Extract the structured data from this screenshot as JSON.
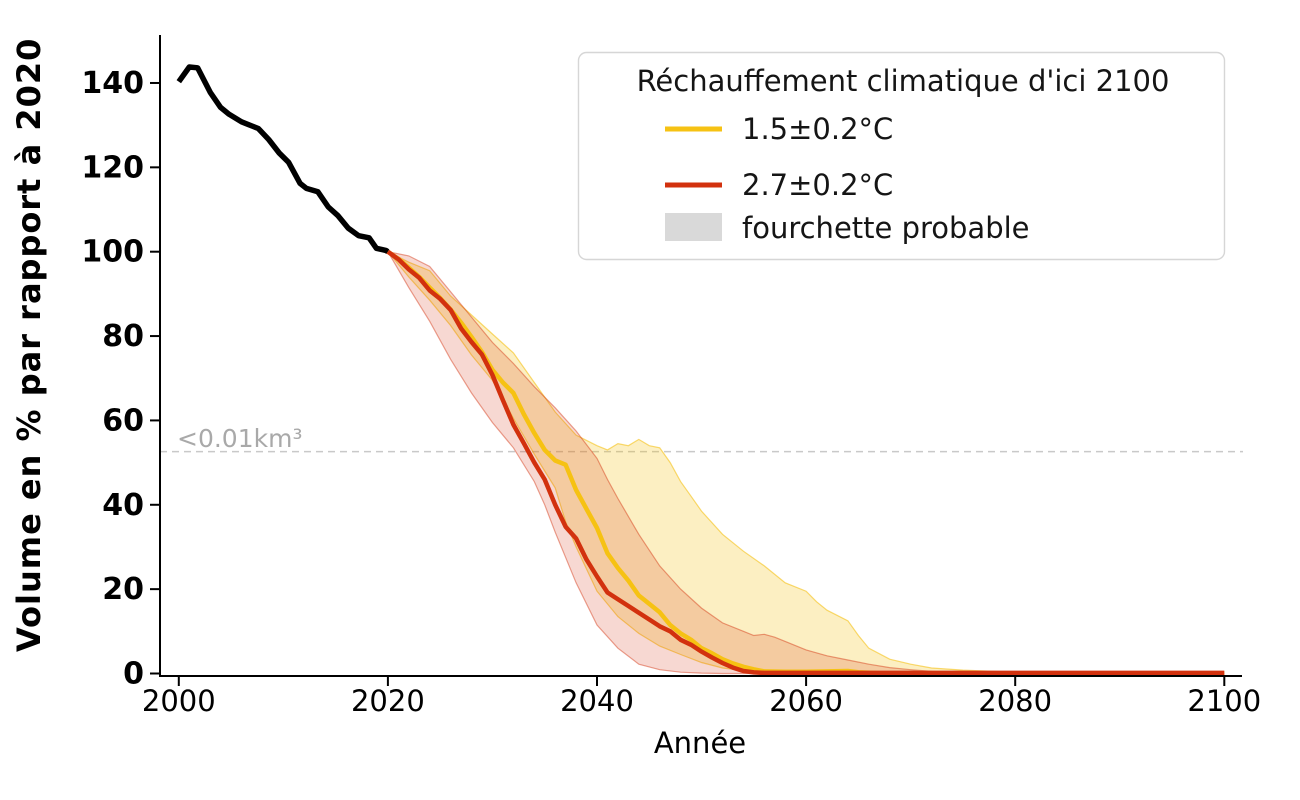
{
  "page": {
    "background": "#ffffff"
  },
  "chart_data": {
    "type": "line",
    "title": "",
    "xlabel": "Année",
    "ylabel": "Volume en % par rapport à 2020",
    "xlim": [
      1998.2,
      2101.5
    ],
    "ylim": [
      -0.6,
      151.4
    ],
    "grid": false,
    "x_ticks": [
      2000,
      2020,
      2040,
      2060,
      2080,
      2100
    ],
    "y_ticks": [
      0,
      20,
      40,
      60,
      80,
      100,
      120,
      140
    ],
    "threshold": {
      "value": 52.6,
      "label": "<0.01km³",
      "line_color": "#c9c9c9",
      "label_color": "#a9a9a9"
    },
    "legend": {
      "title": "Réchauffement climatique d'ici 2100",
      "position": "upper right",
      "entries": [
        {
          "label": "1.5±0.2°C",
          "type": "line",
          "color": "#F6C213"
        },
        {
          "label": "2.7±0.2°C",
          "type": "line",
          "color": "#D2310E"
        },
        {
          "label": "fourchette probable",
          "type": "patch",
          "color": "#d9d9d9"
        }
      ]
    },
    "series": [
      {
        "name": "historique",
        "color": "#000000",
        "width": 5.5,
        "points": [
          [
            2000,
            140.3
          ],
          [
            2001,
            143.8
          ],
          [
            2001.8,
            143.6
          ],
          [
            2003,
            137.8
          ],
          [
            2004,
            134.2
          ],
          [
            2004.8,
            132.6
          ],
          [
            2006,
            130.8
          ],
          [
            2007,
            129.8
          ],
          [
            2007.6,
            129.2
          ],
          [
            2008.6,
            126.6
          ],
          [
            2009.6,
            123.4
          ],
          [
            2010.5,
            121.2
          ],
          [
            2011.6,
            116.2
          ],
          [
            2012.2,
            115.0
          ],
          [
            2013.3,
            114.2
          ],
          [
            2014.3,
            110.6
          ],
          [
            2015.2,
            108.6
          ],
          [
            2016.2,
            105.6
          ],
          [
            2017.2,
            103.8
          ],
          [
            2018.2,
            103.3
          ],
          [
            2018.9,
            100.8
          ],
          [
            2019.8,
            100.3
          ],
          [
            2020,
            100
          ]
        ]
      },
      {
        "name": "1.5±0.2°C",
        "color": "#F6C213",
        "width": 4.5,
        "points": [
          [
            2020,
            100
          ],
          [
            2021,
            98.3
          ],
          [
            2022,
            96.2
          ],
          [
            2023,
            94.0
          ],
          [
            2024,
            91.5
          ],
          [
            2025,
            89.0
          ],
          [
            2026,
            86.3
          ],
          [
            2027,
            83.2
          ],
          [
            2028,
            79.8
          ],
          [
            2029,
            76.2
          ],
          [
            2030,
            72.0
          ],
          [
            2031,
            69.0
          ],
          [
            2032,
            66.5
          ],
          [
            2033,
            61.5
          ],
          [
            2034,
            57.0
          ],
          [
            2035,
            53.0
          ],
          [
            2036,
            50.5
          ],
          [
            2037,
            49.5
          ],
          [
            2038,
            43.5
          ],
          [
            2039,
            39.0
          ],
          [
            2040,
            34.5
          ],
          [
            2041,
            28.5
          ],
          [
            2042,
            25.0
          ],
          [
            2043,
            22.0
          ],
          [
            2044,
            18.5
          ],
          [
            2045,
            16.5
          ],
          [
            2046,
            14.5
          ],
          [
            2047,
            11.5
          ],
          [
            2048,
            9.5
          ],
          [
            2049,
            8.0
          ],
          [
            2050,
            6.0
          ],
          [
            2051,
            4.8
          ],
          [
            2052,
            3.4
          ],
          [
            2053,
            2.4
          ],
          [
            2054,
            1.6
          ],
          [
            2055,
            1.0
          ],
          [
            2056,
            0.5
          ],
          [
            2058,
            0.4
          ],
          [
            2060,
            0.4
          ],
          [
            2062,
            0.5
          ],
          [
            2064,
            0.6
          ],
          [
            2065,
            0.3
          ],
          [
            2067,
            0.1
          ],
          [
            2070,
            0
          ],
          [
            2100,
            0
          ]
        ],
        "band_fill": "rgba(244,187,0,0.24)",
        "band_edge": "rgba(244,187,0,0.55)",
        "band_upper": [
          [
            2020,
            100
          ],
          [
            2022,
            97.5
          ],
          [
            2024,
            95.5
          ],
          [
            2026,
            89.5
          ],
          [
            2028,
            85.0
          ],
          [
            2030,
            80.5
          ],
          [
            2032,
            76.0
          ],
          [
            2034,
            69.0
          ],
          [
            2036,
            62.0
          ],
          [
            2038,
            56.5
          ],
          [
            2040,
            54.0
          ],
          [
            2041,
            53.0
          ],
          [
            2042,
            54.5
          ],
          [
            2043,
            54.0
          ],
          [
            2044,
            55.5
          ],
          [
            2045,
            54.0
          ],
          [
            2046,
            53.5
          ],
          [
            2047,
            50.0
          ],
          [
            2048,
            45.5
          ],
          [
            2049,
            42.0
          ],
          [
            2050,
            38.5
          ],
          [
            2052,
            33.0
          ],
          [
            2054,
            29.0
          ],
          [
            2056,
            25.5
          ],
          [
            2058,
            21.5
          ],
          [
            2060,
            19.5
          ],
          [
            2061,
            17.0
          ],
          [
            2062,
            15.0
          ],
          [
            2064,
            12.5
          ],
          [
            2065,
            9.0
          ],
          [
            2066,
            6.0
          ],
          [
            2068,
            3.4
          ],
          [
            2070,
            2.2
          ],
          [
            2072,
            1.3
          ],
          [
            2075,
            0.8
          ],
          [
            2078,
            0.5
          ],
          [
            2080,
            0.3
          ],
          [
            2083,
            0.1
          ],
          [
            2086,
            0
          ],
          [
            2100,
            0
          ]
        ],
        "band_lower": [
          [
            2020,
            100
          ],
          [
            2022,
            94.0
          ],
          [
            2024,
            88.5
          ],
          [
            2026,
            82.5
          ],
          [
            2028,
            75.5
          ],
          [
            2030,
            69.5
          ],
          [
            2032,
            60.5
          ],
          [
            2034,
            52.0
          ],
          [
            2035,
            48.0
          ],
          [
            2036,
            44.0
          ],
          [
            2037,
            36.0
          ],
          [
            2038,
            30.0
          ],
          [
            2040,
            19.5
          ],
          [
            2042,
            13.5
          ],
          [
            2044,
            9.5
          ],
          [
            2046,
            6.5
          ],
          [
            2048,
            4.5
          ],
          [
            2050,
            2.6
          ],
          [
            2052,
            1.3
          ],
          [
            2054,
            0.7
          ],
          [
            2056,
            0.3
          ],
          [
            2058,
            0.1
          ],
          [
            2060,
            0
          ],
          [
            2100,
            0
          ]
        ]
      },
      {
        "name": "2.7±0.2°C",
        "color": "#D2310E",
        "width": 4.5,
        "points": [
          [
            2020,
            100
          ],
          [
            2021,
            98.2
          ],
          [
            2022,
            95.8
          ],
          [
            2023,
            93.8
          ],
          [
            2024,
            90.8
          ],
          [
            2025,
            88.8
          ],
          [
            2026,
            86.2
          ],
          [
            2027,
            81.8
          ],
          [
            2028,
            78.6
          ],
          [
            2029,
            75.6
          ],
          [
            2030,
            70.8
          ],
          [
            2031,
            64.8
          ],
          [
            2032,
            59.0
          ],
          [
            2033,
            54.6
          ],
          [
            2034,
            50.0
          ],
          [
            2035,
            46.0
          ],
          [
            2036,
            40.0
          ],
          [
            2037,
            34.8
          ],
          [
            2038,
            32.0
          ],
          [
            2039,
            27.0
          ],
          [
            2040,
            23.0
          ],
          [
            2041,
            19.2
          ],
          [
            2042,
            17.6
          ],
          [
            2043,
            16.0
          ],
          [
            2044,
            14.4
          ],
          [
            2045,
            12.8
          ],
          [
            2046,
            11.2
          ],
          [
            2047,
            10.0
          ],
          [
            2048,
            8.0
          ],
          [
            2049,
            6.8
          ],
          [
            2050,
            5.2
          ],
          [
            2051,
            3.8
          ],
          [
            2052,
            2.5
          ],
          [
            2053,
            1.4
          ],
          [
            2054,
            0.6
          ],
          [
            2055,
            0.25
          ],
          [
            2056,
            0.15
          ],
          [
            2060,
            0.15
          ],
          [
            2100,
            0.15
          ]
        ],
        "band_fill": "rgba(210,49,14,0.19)",
        "band_edge": "rgba(210,49,14,0.45)",
        "band_upper": [
          [
            2020,
            100
          ],
          [
            2022,
            99.0
          ],
          [
            2024,
            96.5
          ],
          [
            2026,
            90.5
          ],
          [
            2028,
            84.5
          ],
          [
            2030,
            78.5
          ],
          [
            2032,
            73.5
          ],
          [
            2034,
            68.0
          ],
          [
            2036,
            63.0
          ],
          [
            2038,
            57.5
          ],
          [
            2040,
            51.0
          ],
          [
            2041,
            46.0
          ],
          [
            2042,
            41.5
          ],
          [
            2044,
            33.0
          ],
          [
            2046,
            25.5
          ],
          [
            2048,
            20.0
          ],
          [
            2050,
            15.5
          ],
          [
            2052,
            12.0
          ],
          [
            2054,
            10.0
          ],
          [
            2055,
            9.0
          ],
          [
            2056,
            9.3
          ],
          [
            2057,
            8.6
          ],
          [
            2058,
            7.6
          ],
          [
            2060,
            5.6
          ],
          [
            2062,
            4.2
          ],
          [
            2064,
            3.2
          ],
          [
            2066,
            2.2
          ],
          [
            2068,
            1.4
          ],
          [
            2070,
            0.9
          ],
          [
            2072,
            0.5
          ],
          [
            2074,
            0.25
          ],
          [
            2076,
            0.1
          ],
          [
            2078,
            0
          ],
          [
            2100,
            0
          ]
        ],
        "band_lower": [
          [
            2020,
            100
          ],
          [
            2022,
            91.5
          ],
          [
            2024,
            83.5
          ],
          [
            2026,
            74.5
          ],
          [
            2028,
            66.5
          ],
          [
            2030,
            59.5
          ],
          [
            2032,
            53.5
          ],
          [
            2034,
            45.5
          ],
          [
            2035,
            40.0
          ],
          [
            2036,
            33.5
          ],
          [
            2038,
            21.5
          ],
          [
            2040,
            11.5
          ],
          [
            2042,
            6.0
          ],
          [
            2044,
            2.2
          ],
          [
            2046,
            0.9
          ],
          [
            2048,
            0.3
          ],
          [
            2050,
            0.1
          ],
          [
            2052,
            0
          ],
          [
            2100,
            0
          ]
        ]
      }
    ]
  }
}
